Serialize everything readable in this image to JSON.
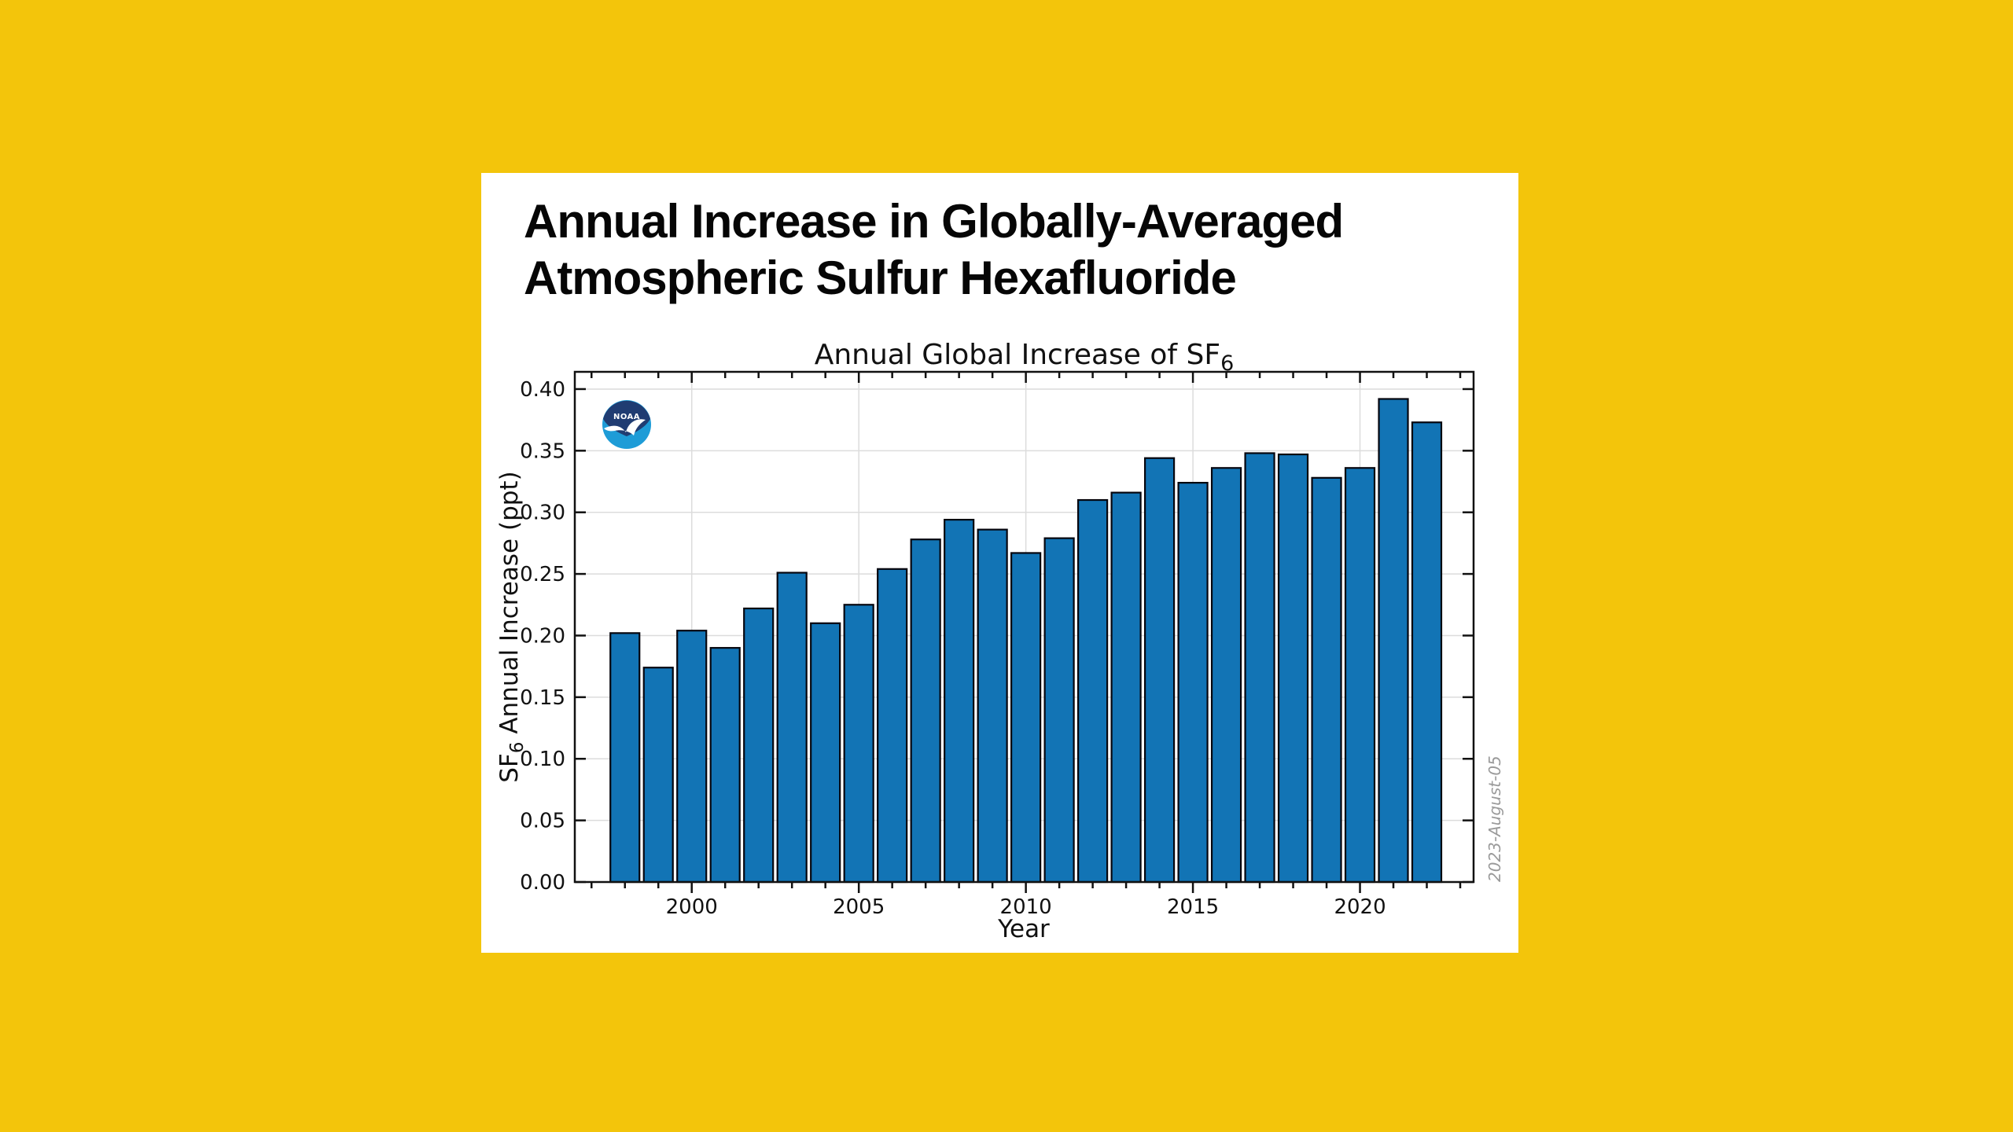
{
  "page": {
    "background_color": "#F3C50B",
    "card_color": "#FFFFFF"
  },
  "heading": {
    "line1": "Annual Increase in Globally-Averaged",
    "line2": "Atmospheric Sulfur Hexafluoride"
  },
  "logo": {
    "name": "NOAA logo",
    "label": "NOAA",
    "dark_color": "#203C72",
    "light_color": "#1E9CD7"
  },
  "watermark": "2023-August-05",
  "chart_data": {
    "type": "bar",
    "title": "Annual Global Increase of SF₆",
    "title_parts": {
      "pre": "Annual Global Increase of SF",
      "sub": "6"
    },
    "xlabel": "Year",
    "ylabel": "SF₆ Annual Increase (ppt)",
    "ylabel_parts": {
      "pre": "SF",
      "sub": "6",
      "post": " Annual Increase (ppt)"
    },
    "unit": "ppt",
    "bar_color": "#1274B5",
    "bar_edge_color": "#06060E",
    "grid_color": "#DCDCDC",
    "grid_on": true,
    "legend": "none",
    "ylim": [
      0,
      0.414
    ],
    "xlim": [
      1996.5,
      2023.4
    ],
    "yticks": [
      0.0,
      0.05,
      0.1,
      0.15,
      0.2,
      0.25,
      0.3,
      0.35,
      0.4
    ],
    "xticks": [
      2000,
      2005,
      2010,
      2015,
      2020
    ],
    "categories": [
      1998,
      1999,
      2000,
      2001,
      2002,
      2003,
      2004,
      2005,
      2006,
      2007,
      2008,
      2009,
      2010,
      2011,
      2012,
      2013,
      2014,
      2015,
      2016,
      2017,
      2018,
      2019,
      2020,
      2021,
      2022
    ],
    "values": [
      0.202,
      0.174,
      0.204,
      0.19,
      0.222,
      0.251,
      0.21,
      0.225,
      0.254,
      0.278,
      0.294,
      0.286,
      0.267,
      0.279,
      0.31,
      0.316,
      0.344,
      0.324,
      0.336,
      0.348,
      0.347,
      0.328,
      0.336,
      0.392,
      0.373
    ]
  }
}
